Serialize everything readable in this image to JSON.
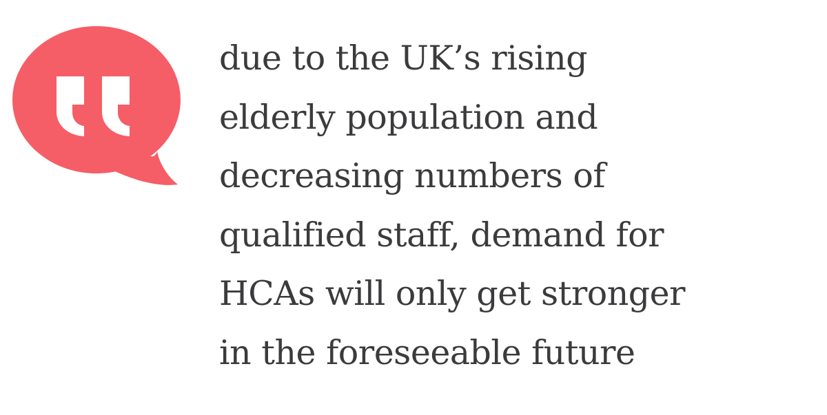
{
  "colors": {
    "bubble": "#f55e67",
    "text": "#3b3b3d"
  },
  "icon": "speech-bubble-quote-icon",
  "quote": {
    "lines": [
      "due to the UK’s rising",
      "elderly population and",
      "decreasing numbers of",
      "qualified staff, demand for",
      "HCAs will only get stronger",
      "in the foreseeable future"
    ]
  }
}
